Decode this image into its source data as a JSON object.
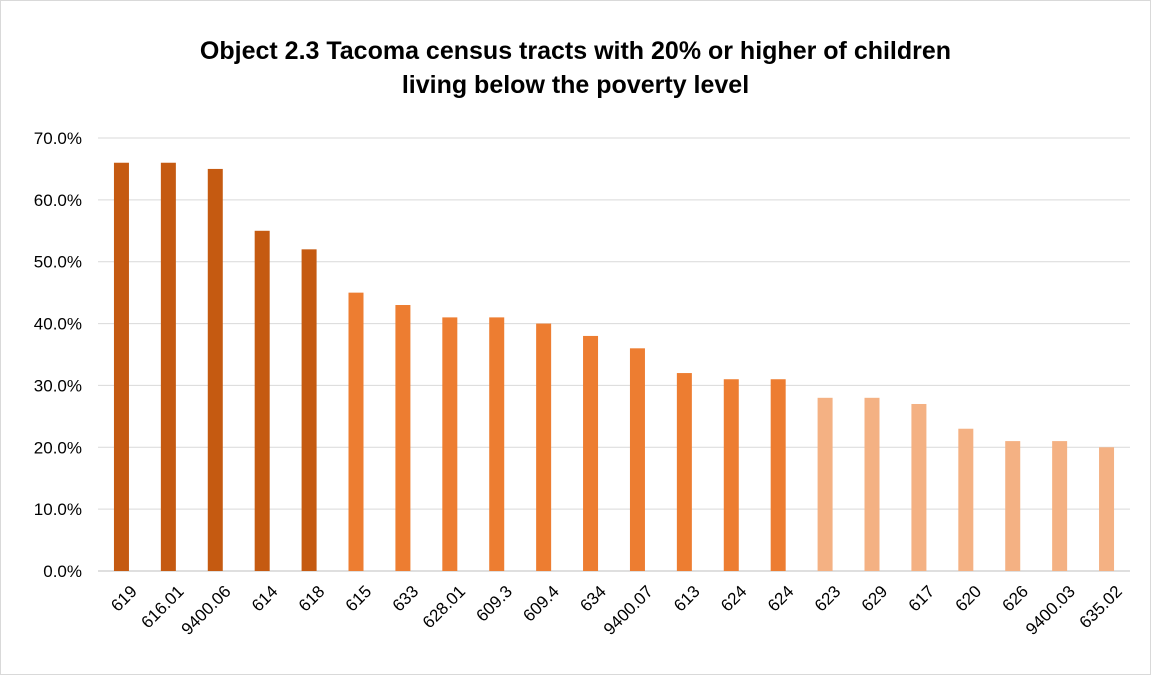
{
  "chart_data": {
    "type": "bar",
    "title_lines": [
      "Object 2.3 Tacoma census tracts with 20% or higher of children",
      "living below the poverty level"
    ],
    "xlabel": "",
    "ylabel": "",
    "ylim": [
      0,
      0.7
    ],
    "y_ticks": [
      "0.0%",
      "10.0%",
      "20.0%",
      "30.0%",
      "40.0%",
      "50.0%",
      "60.0%",
      "70.0%"
    ],
    "grid": "horizontal",
    "legend": "none",
    "categories": [
      "619",
      "616.01",
      "9400.06",
      "614",
      "618",
      "615",
      "633",
      "628.01",
      "609.3",
      "609.4",
      "634",
      "9400.07",
      "613",
      "624",
      "624",
      "623",
      "629",
      "617",
      "620",
      "626",
      "9400.03",
      "635.02"
    ],
    "values": [
      0.66,
      0.66,
      0.65,
      0.55,
      0.52,
      0.45,
      0.43,
      0.41,
      0.41,
      0.4,
      0.38,
      0.36,
      0.32,
      0.31,
      0.31,
      0.28,
      0.28,
      0.27,
      0.23,
      0.21,
      0.21,
      0.2
    ],
    "colors": {
      "dark": "#C55A11",
      "medium": "#ED7D31",
      "light": "#F4B183",
      "grid": "#d9d9d9"
    }
  }
}
